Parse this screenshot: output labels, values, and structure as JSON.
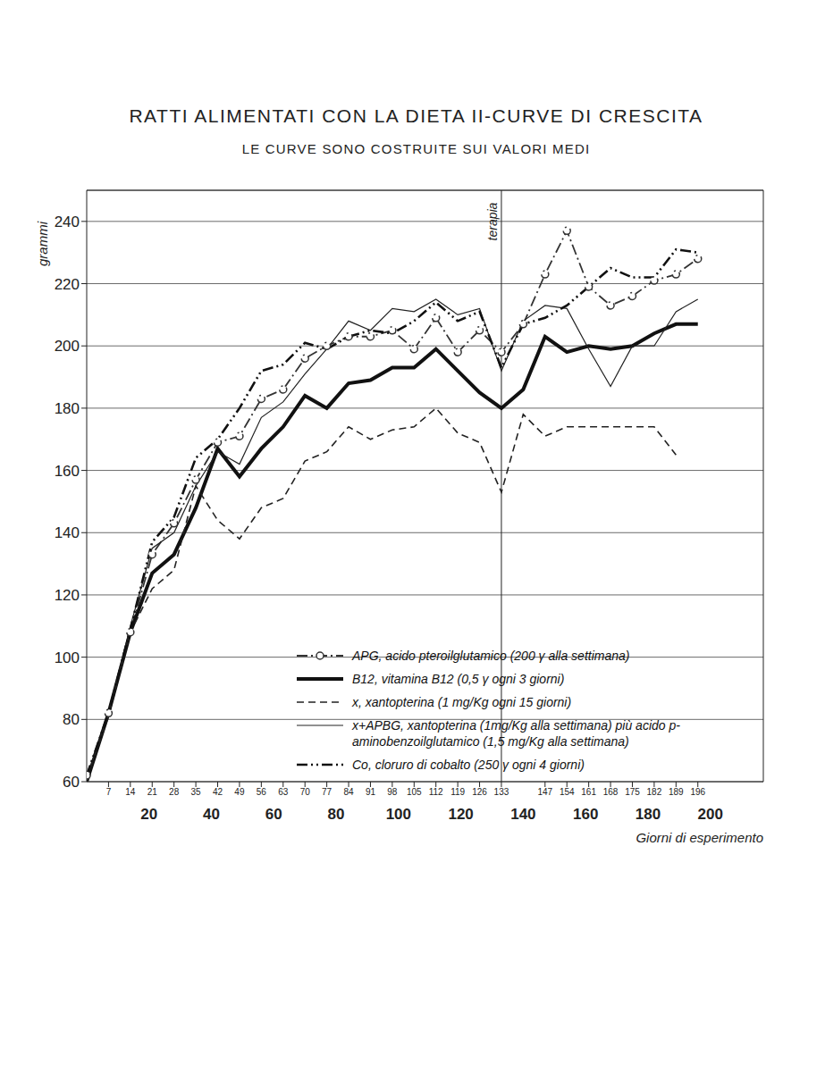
{
  "chart_data": {
    "type": "line",
    "title": "RATTI ALIMENTATI CON LA DIETA II-CURVE DI CRESCITA",
    "subtitle": "LE CURVE SONO COSTRUITE SUI VALORI MEDI",
    "x_label": "Giorni di esperimento",
    "y_label": "grammi",
    "x": [
      0,
      7,
      14,
      21,
      28,
      35,
      42,
      49,
      56,
      63,
      70,
      77,
      84,
      91,
      98,
      105,
      112,
      119,
      126,
      133,
      140,
      147,
      154,
      161,
      168,
      175,
      182,
      189,
      196
    ],
    "xlim": [
      0,
      217
    ],
    "xticks": [
      7,
      14,
      21,
      28,
      35,
      42,
      49,
      56,
      63,
      70,
      77,
      84,
      91,
      98,
      105,
      112,
      119,
      126,
      133,
      147,
      154,
      161,
      168,
      175,
      182,
      189,
      196
    ],
    "x2lim": [
      0,
      217
    ],
    "x2ticks": [
      20,
      40,
      60,
      80,
      100,
      120,
      140,
      160,
      180,
      200
    ],
    "ylim": [
      60,
      250
    ],
    "yticks": [
      60,
      80,
      100,
      120,
      140,
      160,
      180,
      200,
      220,
      240
    ],
    "grid": true,
    "legend": "lower right",
    "annotations": [
      {
        "x": 133,
        "text": "terapia"
      }
    ],
    "series": [
      {
        "name": "APG, acido pteroilglutamico (200 γ alla settimana)",
        "color": "#333333",
        "line_style": "dashdot",
        "marker": "circle",
        "values": [
          62,
          82,
          108,
          133,
          143,
          157,
          169,
          171,
          183,
          186,
          196,
          200,
          203,
          203,
          205,
          199,
          209,
          198,
          205,
          198,
          207,
          223,
          237,
          219,
          213,
          216,
          221,
          223,
          228
        ]
      },
      {
        "name": "B12, vitamina B12 (0,5 γ ogni 3 giorni)",
        "color": "#111111",
        "line_style": "solid",
        "marker": "none",
        "values": [
          60,
          82,
          108,
          127,
          133,
          148,
          167,
          158,
          167,
          174,
          184,
          180,
          188,
          189,
          193,
          193,
          199,
          192,
          185,
          180,
          186,
          203,
          198,
          200,
          199,
          200,
          204,
          207,
          207
        ]
      },
      {
        "name": "x, xantopterina (1 mg/Kg ogni 15 giorni)",
        "color": "#222222",
        "line_style": "dashed",
        "marker": "none",
        "values": [
          61,
          81,
          108,
          122,
          128,
          155,
          144,
          138,
          148,
          151,
          163,
          166,
          174,
          170,
          173,
          174,
          180,
          172,
          169,
          153,
          178,
          171,
          174,
          174,
          174,
          174,
          174,
          165,
          null
        ]
      },
      {
        "name": "x+APBG, xantopterina (1mg/Kg alla settimana) più acido p-aminobenzoilglutamico (1,5 mg/Kg alla settimana)",
        "color": "#222222",
        "line_style": "solid",
        "marker": "none",
        "values": [
          61,
          82,
          110,
          135,
          140,
          155,
          166,
          162,
          177,
          182,
          191,
          199,
          208,
          205,
          212,
          211,
          215,
          210,
          212,
          192,
          208,
          213,
          212,
          199,
          187,
          200,
          200,
          211,
          215
        ]
      },
      {
        "name": "Co, cloruro di cobalto (250 γ ogni 4 giorni)",
        "color": "#111111",
        "line_style": "dashdotdot",
        "marker": "none",
        "values": [
          62,
          82,
          109,
          137,
          145,
          164,
          170,
          180,
          192,
          194,
          201,
          199,
          203,
          205,
          204,
          208,
          214,
          208,
          211,
          193,
          207,
          209,
          213,
          219,
          225,
          222,
          222,
          231,
          230
        ]
      }
    ]
  }
}
